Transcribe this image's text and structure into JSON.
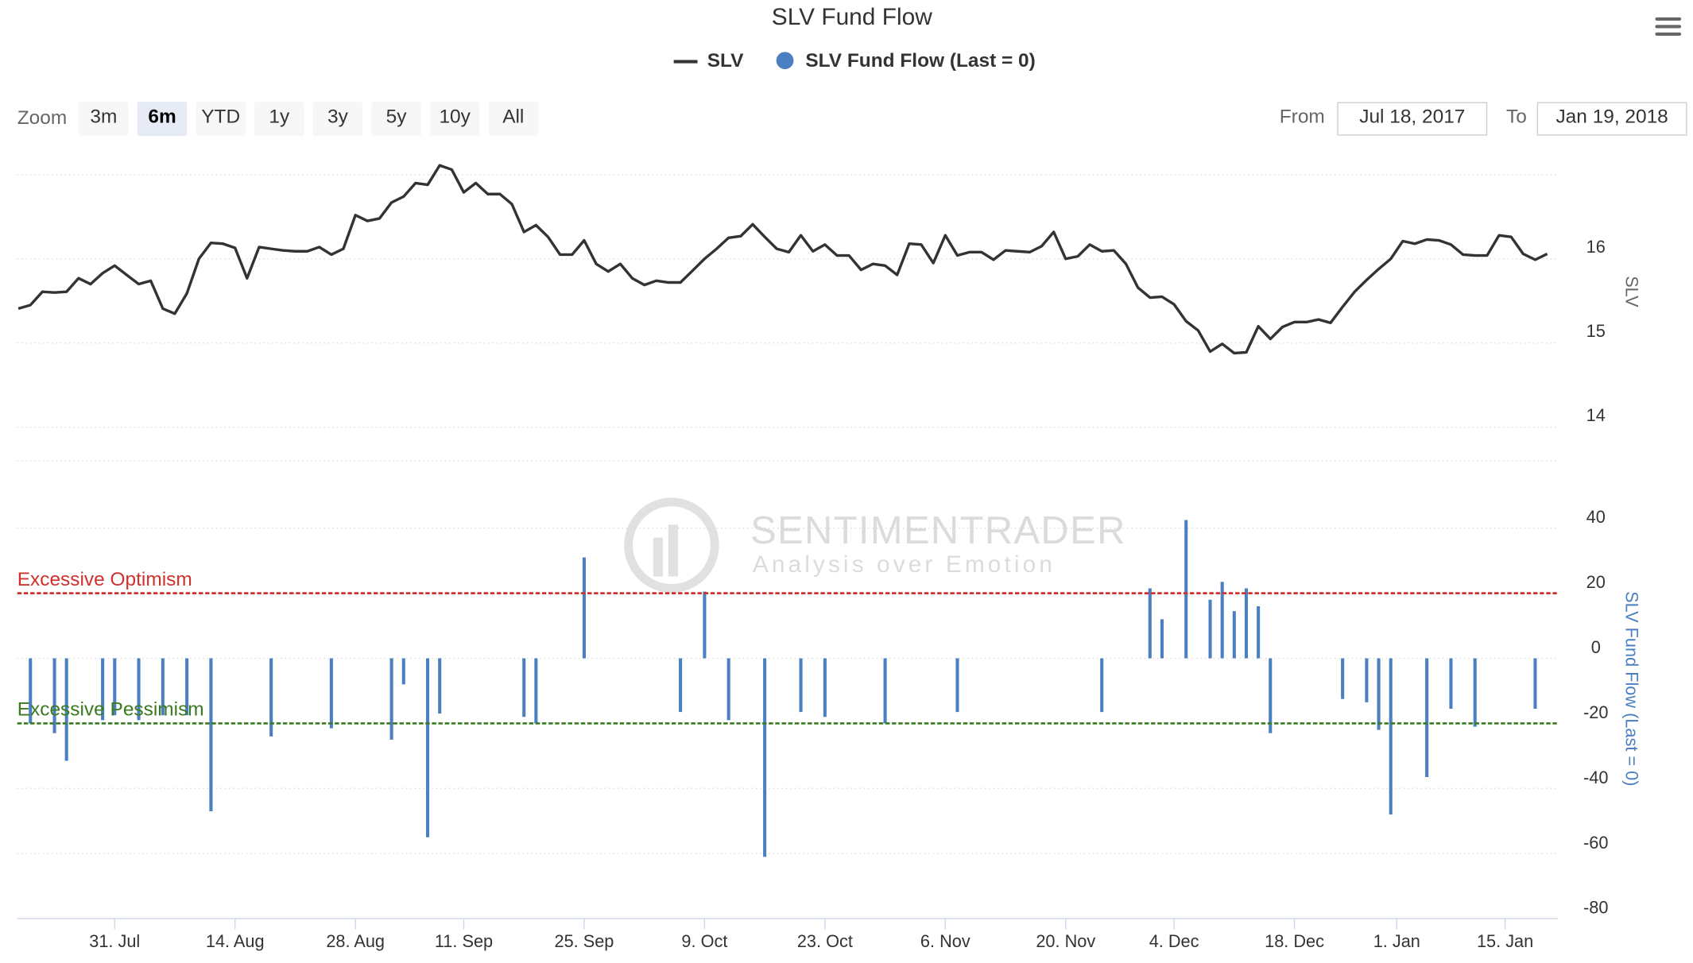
{
  "ui": {
    "zoom": {
      "label": "Zoom",
      "buttons": [
        "3m",
        "6m",
        "YTD",
        "1y",
        "3y",
        "5y",
        "10y",
        "All"
      ],
      "selected": "6m"
    },
    "range": {
      "from_label": "From",
      "from": "Jul 18, 2017",
      "to_label": "To",
      "to": "Jan 19, 2018"
    },
    "watermark": {
      "name": "SENTIMENTRADER",
      "tagline": "Analysis over Emotion"
    }
  },
  "chart_data": [
    {
      "type": "line",
      "title": "SLV Fund Flow",
      "y_label": "SLV",
      "x": [
        "2017-07-19",
        "2017-07-20",
        "2017-07-21",
        "2017-07-24",
        "2017-07-25",
        "2017-07-26",
        "2017-07-27",
        "2017-07-28",
        "2017-07-31",
        "2017-08-01",
        "2017-08-02",
        "2017-08-03",
        "2017-08-04",
        "2017-08-07",
        "2017-08-08",
        "2017-08-09",
        "2017-08-10",
        "2017-08-11",
        "2017-08-14",
        "2017-08-15",
        "2017-08-16",
        "2017-08-17",
        "2017-08-18",
        "2017-08-21",
        "2017-08-22",
        "2017-08-23",
        "2017-08-24",
        "2017-08-25",
        "2017-08-28",
        "2017-08-29",
        "2017-08-30",
        "2017-08-31",
        "2017-09-01",
        "2017-09-05",
        "2017-09-06",
        "2017-09-07",
        "2017-09-08",
        "2017-09-11",
        "2017-09-12",
        "2017-09-13",
        "2017-09-14",
        "2017-09-15",
        "2017-09-18",
        "2017-09-19",
        "2017-09-20",
        "2017-09-21",
        "2017-09-22",
        "2017-09-25",
        "2017-09-26",
        "2017-09-27",
        "2017-09-28",
        "2017-09-29",
        "2017-10-02",
        "2017-10-03",
        "2017-10-04",
        "2017-10-05",
        "2017-10-06",
        "2017-10-09",
        "2017-10-10",
        "2017-10-11",
        "2017-10-12",
        "2017-10-13",
        "2017-10-16",
        "2017-10-17",
        "2017-10-18",
        "2017-10-19",
        "2017-10-20",
        "2017-10-23",
        "2017-10-24",
        "2017-10-25",
        "2017-10-26",
        "2017-10-27",
        "2017-10-30",
        "2017-10-31",
        "2017-11-01",
        "2017-11-02",
        "2017-11-03",
        "2017-11-06",
        "2017-11-07",
        "2017-11-08",
        "2017-11-09",
        "2017-11-10",
        "2017-11-13",
        "2017-11-14",
        "2017-11-15",
        "2017-11-16",
        "2017-11-17",
        "2017-11-20",
        "2017-11-21",
        "2017-11-22",
        "2017-11-24",
        "2017-11-27",
        "2017-11-28",
        "2017-11-29",
        "2017-11-30",
        "2017-12-01",
        "2017-12-04",
        "2017-12-05",
        "2017-12-06",
        "2017-12-07",
        "2017-12-08",
        "2017-12-11",
        "2017-12-12",
        "2017-12-13",
        "2017-12-14",
        "2017-12-15",
        "2017-12-18",
        "2017-12-19",
        "2017-12-20",
        "2017-12-21",
        "2017-12-22",
        "2017-12-26",
        "2017-12-27",
        "2017-12-28",
        "2017-12-29",
        "2018-01-02",
        "2018-01-03",
        "2018-01-04",
        "2018-01-05",
        "2018-01-08",
        "2018-01-09",
        "2018-01-10",
        "2018-01-11",
        "2018-01-12",
        "2018-01-16",
        "2018-01-17",
        "2018-01-18",
        "2018-01-19"
      ],
      "series": [
        {
          "name": "SLV",
          "color": "#333333",
          "values": [
            15.41,
            15.45,
            15.61,
            15.6,
            15.61,
            15.77,
            15.7,
            15.83,
            15.92,
            15.81,
            15.7,
            15.74,
            15.41,
            15.35,
            15.59,
            16.0,
            16.19,
            16.18,
            16.13,
            15.77,
            16.14,
            16.12,
            16.1,
            16.09,
            16.09,
            16.14,
            16.05,
            16.12,
            16.52,
            16.45,
            16.48,
            16.67,
            16.74,
            16.9,
            16.88,
            17.11,
            17.06,
            16.79,
            16.9,
            16.77,
            16.77,
            16.65,
            16.32,
            16.4,
            16.26,
            16.05,
            16.05,
            16.22,
            15.94,
            15.85,
            15.94,
            15.77,
            15.69,
            15.74,
            15.72,
            15.72,
            15.86,
            16.0,
            16.12,
            16.25,
            16.27,
            16.41,
            16.26,
            16.12,
            16.08,
            16.28,
            16.09,
            16.17,
            16.04,
            16.04,
            15.87,
            15.94,
            15.92,
            15.81,
            16.18,
            16.17,
            15.95,
            16.28,
            16.04,
            16.08,
            16.08,
            15.99,
            16.1,
            16.09,
            16.08,
            16.15,
            16.32,
            16.0,
            16.03,
            16.17,
            16.09,
            16.1,
            15.94,
            15.66,
            15.54,
            15.55,
            15.46,
            15.26,
            15.15,
            14.9,
            14.99,
            14.88,
            14.89,
            15.2,
            15.05,
            15.19,
            15.25,
            15.25,
            15.28,
            15.24,
            15.43,
            15.61,
            15.75,
            15.88,
            16.0,
            16.21,
            16.18,
            16.23,
            16.22,
            16.17,
            16.05,
            16.04,
            16.04,
            16.28,
            16.26,
            16.06,
            15.99,
            16.06
          ]
        }
      ],
      "ylim": [
        13.6,
        17.15
      ],
      "yticks": [
        14,
        15,
        16
      ],
      "grid": true
    },
    {
      "type": "bar",
      "y_label": "SLV Fund Flow (Last = 0)",
      "series": [
        {
          "name": "SLV Fund Flow (Last = 0)",
          "color": "#4a7fc1",
          "x": [
            "2017-07-20",
            "2017-07-24",
            "2017-07-25",
            "2017-07-28",
            "2017-07-31",
            "2017-08-02",
            "2017-08-04",
            "2017-08-08",
            "2017-08-10",
            "2017-08-17",
            "2017-08-24",
            "2017-08-31",
            "2017-09-01",
            "2017-09-06",
            "2017-09-07",
            "2017-09-18",
            "2017-09-19",
            "2017-09-25",
            "2017-10-05",
            "2017-10-09",
            "2017-10-11",
            "2017-10-16",
            "2017-10-19",
            "2017-10-23",
            "2017-10-30",
            "2017-11-07",
            "2017-11-24",
            "2017-11-30",
            "2017-12-01",
            "2017-12-05",
            "2017-12-07",
            "2017-12-08",
            "2017-12-11",
            "2017-12-12",
            "2017-12-13",
            "2017-12-14",
            "2017-12-22",
            "2017-12-27",
            "2017-12-28",
            "2017-12-29",
            "2018-01-04",
            "2018-01-08",
            "2018-01-10",
            "2018-01-18"
          ],
          "values": [
            -20,
            -23,
            -31.5,
            -19,
            -17.5,
            -19,
            -17.5,
            -17.5,
            -47,
            -24,
            -21.5,
            -25,
            -8,
            -55,
            -17,
            -18,
            -20,
            31,
            -16.5,
            20.5,
            -19,
            -61,
            -16.5,
            -18,
            -20,
            -16.5,
            -16.5,
            21.5,
            12,
            42.5,
            18,
            23.5,
            14.5,
            21.5,
            16,
            -23,
            -12.5,
            -13.5,
            -22,
            -48,
            -36.5,
            -15.5,
            -21,
            -15.5
          ]
        }
      ],
      "annotations": [
        {
          "label": "Excessive Optimism",
          "value": 20,
          "color": "#d0312d"
        },
        {
          "label": "Excessive Pessimism",
          "value": -20,
          "color": "#3a7a20"
        }
      ],
      "ylim": [
        -80,
        55
      ],
      "yticks": [
        -80,
        -60,
        -40,
        -20,
        0,
        20,
        40
      ],
      "grid": true,
      "xticks": [
        {
          "value": "2017-07-31",
          "label": "31. Jul"
        },
        {
          "value": "2017-08-14",
          "label": "14. Aug"
        },
        {
          "value": "2017-08-28",
          "label": "28. Aug"
        },
        {
          "value": "2017-09-11",
          "label": "11. Sep"
        },
        {
          "value": "2017-09-25",
          "label": "25. Sep"
        },
        {
          "value": "2017-10-09",
          "label": "9. Oct"
        },
        {
          "value": "2017-10-23",
          "label": "23. Oct"
        },
        {
          "value": "2017-11-06",
          "label": "6. Nov"
        },
        {
          "value": "2017-11-20",
          "label": "20. Nov"
        },
        {
          "value": "2017-12-04",
          "label": "4. Dec"
        },
        {
          "value": "2017-12-18",
          "label": "18. Dec"
        },
        {
          "value": "2018-01-01",
          "label": "1. Jan"
        },
        {
          "value": "2018-01-15",
          "label": "15. Jan"
        }
      ]
    }
  ]
}
